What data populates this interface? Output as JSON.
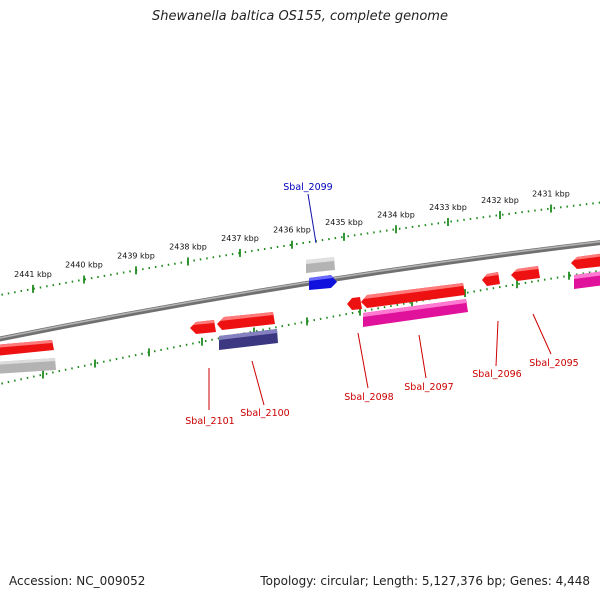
{
  "title": "Shewanella baltica OS155, complete genome",
  "footer": {
    "accession": "Accession: NC_009052",
    "summary": "Topology: circular; Length: 5,127,376 bp; Genes: 4,448"
  },
  "colors": {
    "background": "#ffffff",
    "backbone": "#8a8a8a",
    "tick": "#1f8a1f",
    "forward_gene": "#ee1111",
    "reverse_gene": "#ee1111",
    "magenta_feature": "#e0119a",
    "navy_feature": "#3b3780",
    "gray_feature": "#b3b3b3",
    "highlight_gene": "#1111dd",
    "label_red": "#cc0000",
    "label_blue": "#0000bb"
  },
  "scale": {
    "unit": "kbp",
    "labels": [
      "2441 kbp",
      "2440 kbp",
      "2439 kbp",
      "2438 kbp",
      "2437 kbp",
      "2436 kbp",
      "2435 kbp",
      "2434 kbp",
      "2433 kbp",
      "2432 kbp",
      "2431 kbp"
    ]
  },
  "genes": [
    {
      "id": "Sbal_2099",
      "label": "Sbal_2099",
      "color": "highlight"
    },
    {
      "id": "Sbal_2101",
      "label": "Sbal_2101",
      "color": "red"
    },
    {
      "id": "Sbal_2100",
      "label": "Sbal_2100",
      "color": "red"
    },
    {
      "id": "Sbal_2098",
      "label": "Sbal_2098",
      "color": "red"
    },
    {
      "id": "Sbal_2097",
      "label": "Sbal_2097",
      "color": "red"
    },
    {
      "id": "Sbal_2096",
      "label": "Sbal_2096",
      "color": "red"
    },
    {
      "id": "Sbal_2095",
      "label": "Sbal_2095",
      "color": "red"
    }
  ]
}
